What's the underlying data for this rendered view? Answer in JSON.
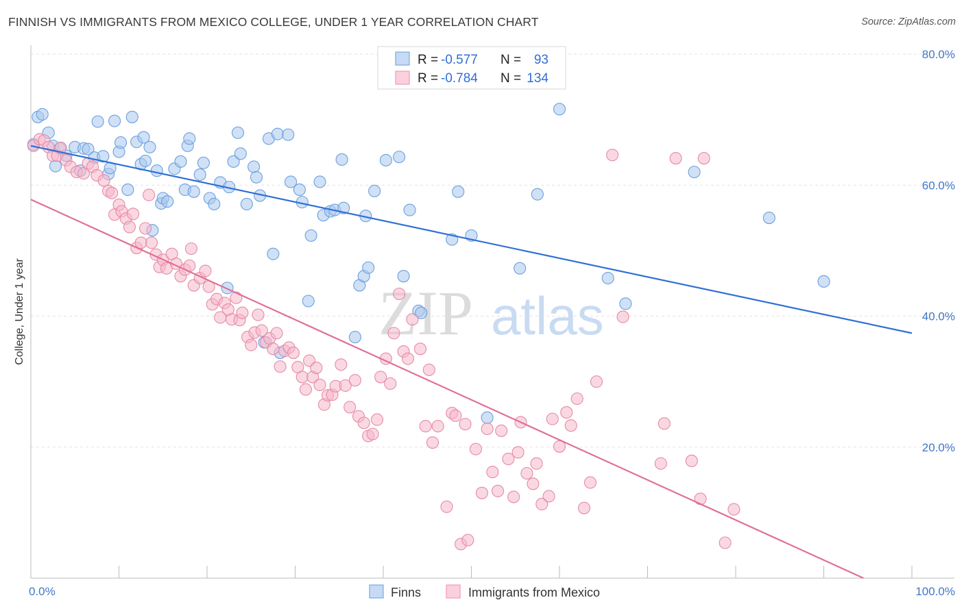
{
  "title": "FINNISH VS IMMIGRANTS FROM MEXICO COLLEGE, UNDER 1 YEAR CORRELATION CHART",
  "source": "Source: ZipAtlas.com",
  "watermark": {
    "zip": "ZIP",
    "atlas": "atlas"
  },
  "legend": {
    "rows": [
      {
        "r_label": "R =",
        "r_value": "-0.577",
        "n_label": "N =",
        "n_value": "93",
        "color": "#a9c8ef"
      },
      {
        "r_label": "R =",
        "r_value": "-0.784",
        "n_label": "N =",
        "n_value": "134",
        "color": "#f6b8cb"
      }
    ]
  },
  "chart_data": {
    "type": "scatter",
    "title": "FINNISH VS IMMIGRANTS FROM MEXICO COLLEGE, UNDER 1 YEAR CORRELATION CHART",
    "xlabel": "",
    "ylabel": "College, Under 1 year",
    "xlim": [
      0,
      100
    ],
    "ylim": [
      0,
      80
    ],
    "x_tick_labels": [
      "0.0%",
      "100.0%"
    ],
    "y_tick_labels": [
      "80.0%",
      "60.0%",
      "40.0%",
      "20.0%"
    ],
    "y_ticks": [
      80,
      60,
      40,
      20
    ],
    "legend_placement": "bottom-center",
    "series": [
      {
        "name": "Finns",
        "color": "#a9c8ef",
        "stroke": "#6a9fde",
        "trend_color": "#2f6fd6",
        "trend": {
          "x0": 0,
          "y0": 66,
          "x1": 100,
          "y1": 37.4
        },
        "points": [
          [
            0.3,
            66.2
          ],
          [
            0.8,
            70.4
          ],
          [
            1.3,
            70.8
          ],
          [
            2.0,
            68.0
          ],
          [
            2.5,
            66.0
          ],
          [
            2.8,
            62.9
          ],
          [
            3.3,
            65.6
          ],
          [
            4.0,
            64.5
          ],
          [
            5.0,
            65.8
          ],
          [
            5.6,
            62.2
          ],
          [
            6.0,
            65.6
          ],
          [
            6.5,
            65.5
          ],
          [
            7.2,
            64.2
          ],
          [
            7.6,
            69.7
          ],
          [
            8.2,
            64.4
          ],
          [
            8.8,
            61.7
          ],
          [
            9.0,
            62.6
          ],
          [
            9.5,
            69.8
          ],
          [
            10.0,
            65.1
          ],
          [
            10.2,
            66.5
          ],
          [
            11.0,
            59.3
          ],
          [
            11.5,
            70.4
          ],
          [
            12.0,
            66.6
          ],
          [
            12.5,
            63.2
          ],
          [
            12.8,
            67.3
          ],
          [
            13.0,
            63.7
          ],
          [
            13.5,
            65.8
          ],
          [
            13.8,
            53.1
          ],
          [
            14.3,
            62.2
          ],
          [
            14.8,
            57.2
          ],
          [
            15.0,
            58.0
          ],
          [
            15.5,
            57.5
          ],
          [
            16.3,
            62.5
          ],
          [
            17.0,
            63.6
          ],
          [
            17.5,
            59.3
          ],
          [
            17.8,
            66.0
          ],
          [
            18.0,
            67.1
          ],
          [
            18.5,
            59.0
          ],
          [
            19.2,
            61.6
          ],
          [
            19.6,
            63.4
          ],
          [
            20.3,
            58.0
          ],
          [
            20.8,
            57.1
          ],
          [
            21.5,
            60.4
          ],
          [
            22.3,
            44.3
          ],
          [
            22.5,
            59.7
          ],
          [
            23.0,
            63.6
          ],
          [
            23.5,
            68.0
          ],
          [
            23.8,
            64.8
          ],
          [
            24.5,
            57.1
          ],
          [
            25.3,
            62.8
          ],
          [
            25.6,
            61.2
          ],
          [
            26.0,
            58.4
          ],
          [
            26.5,
            36.0
          ],
          [
            27.0,
            67.1
          ],
          [
            27.5,
            49.5
          ],
          [
            28.0,
            67.8
          ],
          [
            28.3,
            34.4
          ],
          [
            29.2,
            67.7
          ],
          [
            29.5,
            60.5
          ],
          [
            30.5,
            59.3
          ],
          [
            30.8,
            57.4
          ],
          [
            31.5,
            42.3
          ],
          [
            31.8,
            52.3
          ],
          [
            32.8,
            60.5
          ],
          [
            33.2,
            55.4
          ],
          [
            34.0,
            56.0
          ],
          [
            34.5,
            56.2
          ],
          [
            35.5,
            56.5
          ],
          [
            35.3,
            63.9
          ],
          [
            36.8,
            36.8
          ],
          [
            37.3,
            44.7
          ],
          [
            37.8,
            46.1
          ],
          [
            38.0,
            55.3
          ],
          [
            38.3,
            47.4
          ],
          [
            39.0,
            59.1
          ],
          [
            40.3,
            63.8
          ],
          [
            41.8,
            64.3
          ],
          [
            42.3,
            46.1
          ],
          [
            43.0,
            56.2
          ],
          [
            44.0,
            40.8
          ],
          [
            44.3,
            40.5
          ],
          [
            47.8,
            51.7
          ],
          [
            48.5,
            59.0
          ],
          [
            50.0,
            52.3
          ],
          [
            51.8,
            24.5
          ],
          [
            55.5,
            47.3
          ],
          [
            57.5,
            58.6
          ],
          [
            60.0,
            71.6
          ],
          [
            65.5,
            45.8
          ],
          [
            67.5,
            41.9
          ],
          [
            75.3,
            62.0
          ],
          [
            83.8,
            55.0
          ],
          [
            90.0,
            45.3
          ]
        ]
      },
      {
        "name": "Immigrants from Mexico",
        "color": "#f6b8cb",
        "stroke": "#e58aa6",
        "trend_color": "#e06f96",
        "trend": {
          "x0": 0,
          "y0": 57.8,
          "x1": 94.5,
          "y1": 0
        },
        "points": [
          [
            0.3,
            66.0
          ],
          [
            1.0,
            67.0
          ],
          [
            1.5,
            66.8
          ],
          [
            2.0,
            65.8
          ],
          [
            2.5,
            64.5
          ],
          [
            3.0,
            64.5
          ],
          [
            3.4,
            65.7
          ],
          [
            4.0,
            63.8
          ],
          [
            4.5,
            62.8
          ],
          [
            5.2,
            62.0
          ],
          [
            6.0,
            61.8
          ],
          [
            6.5,
            63.3
          ],
          [
            7.0,
            62.8
          ],
          [
            7.5,
            61.5
          ],
          [
            8.3,
            60.7
          ],
          [
            8.8,
            59.1
          ],
          [
            9.2,
            58.8
          ],
          [
            9.5,
            55.5
          ],
          [
            10.0,
            57.0
          ],
          [
            10.3,
            56.0
          ],
          [
            10.8,
            54.9
          ],
          [
            11.2,
            53.6
          ],
          [
            11.6,
            55.6
          ],
          [
            12.0,
            50.4
          ],
          [
            12.5,
            51.2
          ],
          [
            13.0,
            53.4
          ],
          [
            13.4,
            58.5
          ],
          [
            13.7,
            51.2
          ],
          [
            14.2,
            49.4
          ],
          [
            14.6,
            47.5
          ],
          [
            15.0,
            48.6
          ],
          [
            15.4,
            47.3
          ],
          [
            16.0,
            49.5
          ],
          [
            16.5,
            48.0
          ],
          [
            17.0,
            46.1
          ],
          [
            17.5,
            47.1
          ],
          [
            18.0,
            47.7
          ],
          [
            18.2,
            50.3
          ],
          [
            18.5,
            44.7
          ],
          [
            19.2,
            45.8
          ],
          [
            19.8,
            46.9
          ],
          [
            20.2,
            44.5
          ],
          [
            20.6,
            41.8
          ],
          [
            21.1,
            42.6
          ],
          [
            21.5,
            39.8
          ],
          [
            22.0,
            42.0
          ],
          [
            22.4,
            41.0
          ],
          [
            22.8,
            39.5
          ],
          [
            23.3,
            42.8
          ],
          [
            23.7,
            39.4
          ],
          [
            24.0,
            40.5
          ],
          [
            24.6,
            36.8
          ],
          [
            25.0,
            35.6
          ],
          [
            25.4,
            37.5
          ],
          [
            25.8,
            40.2
          ],
          [
            26.2,
            37.8
          ],
          [
            26.7,
            36.0
          ],
          [
            27.1,
            36.6
          ],
          [
            27.5,
            35.0
          ],
          [
            27.9,
            37.4
          ],
          [
            28.3,
            32.3
          ],
          [
            28.8,
            34.7
          ],
          [
            29.3,
            35.2
          ],
          [
            29.8,
            34.4
          ],
          [
            30.3,
            32.2
          ],
          [
            30.8,
            30.7
          ],
          [
            31.2,
            28.8
          ],
          [
            31.6,
            33.2
          ],
          [
            32.0,
            30.7
          ],
          [
            32.4,
            32.1
          ],
          [
            32.8,
            29.5
          ],
          [
            33.3,
            26.5
          ],
          [
            33.7,
            27.9
          ],
          [
            34.2,
            28.0
          ],
          [
            34.6,
            29.3
          ],
          [
            35.2,
            32.6
          ],
          [
            35.7,
            29.4
          ],
          [
            36.2,
            26.1
          ],
          [
            36.8,
            30.2
          ],
          [
            37.2,
            24.7
          ],
          [
            37.8,
            23.7
          ],
          [
            38.3,
            21.7
          ],
          [
            38.8,
            22.0
          ],
          [
            39.3,
            24.2
          ],
          [
            39.7,
            30.7
          ],
          [
            40.3,
            33.5
          ],
          [
            40.8,
            29.7
          ],
          [
            41.2,
            37.4
          ],
          [
            41.8,
            43.4
          ],
          [
            42.3,
            34.6
          ],
          [
            42.8,
            33.5
          ],
          [
            43.3,
            39.5
          ],
          [
            44.2,
            35.0
          ],
          [
            44.8,
            23.2
          ],
          [
            45.2,
            31.8
          ],
          [
            45.6,
            20.7
          ],
          [
            46.2,
            23.2
          ],
          [
            47.2,
            10.9
          ],
          [
            47.8,
            25.2
          ],
          [
            48.2,
            24.8
          ],
          [
            48.8,
            5.2
          ],
          [
            49.3,
            23.5
          ],
          [
            49.6,
            5.8
          ],
          [
            50.5,
            19.7
          ],
          [
            51.2,
            13.0
          ],
          [
            51.8,
            22.8
          ],
          [
            52.4,
            16.2
          ],
          [
            53.0,
            13.3
          ],
          [
            53.4,
            22.5
          ],
          [
            54.2,
            18.2
          ],
          [
            54.8,
            12.4
          ],
          [
            55.3,
            19.2
          ],
          [
            55.6,
            23.8
          ],
          [
            56.3,
            16.0
          ],
          [
            57.0,
            14.4
          ],
          [
            57.4,
            17.5
          ],
          [
            58.0,
            11.3
          ],
          [
            58.8,
            12.5
          ],
          [
            59.2,
            24.3
          ],
          [
            60.0,
            20.1
          ],
          [
            60.8,
            25.3
          ],
          [
            61.3,
            23.3
          ],
          [
            62.0,
            27.4
          ],
          [
            62.8,
            10.7
          ],
          [
            63.5,
            14.6
          ],
          [
            64.2,
            30.0
          ],
          [
            66.0,
            64.6
          ],
          [
            67.2,
            39.9
          ],
          [
            71.5,
            17.5
          ],
          [
            71.9,
            23.6
          ],
          [
            75.0,
            17.9
          ],
          [
            76.0,
            12.1
          ],
          [
            78.8,
            5.4
          ],
          [
            79.8,
            10.5
          ],
          [
            73.2,
            64.1
          ],
          [
            76.4,
            64.1
          ]
        ]
      }
    ]
  }
}
